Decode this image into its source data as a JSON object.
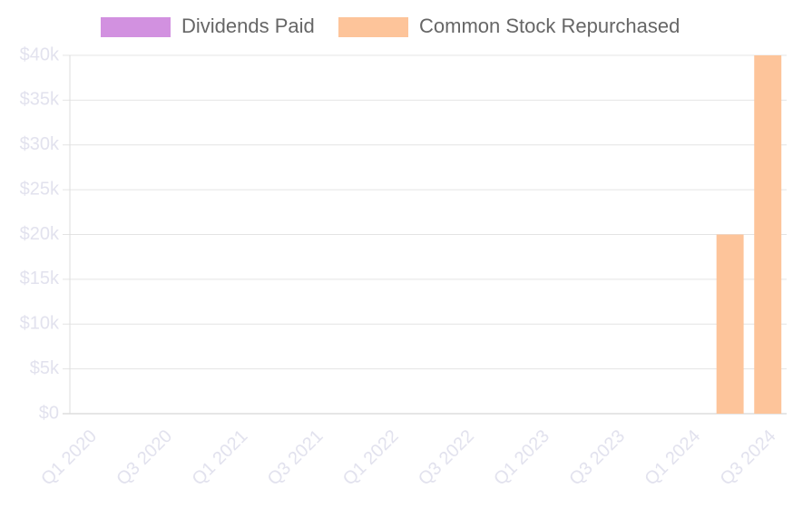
{
  "chart_data": {
    "type": "bar",
    "stacked": true,
    "categories": [
      "Q1 2020",
      null,
      "Q3 2020",
      null,
      "Q1 2021",
      null,
      "Q3 2021",
      null,
      "Q1 2022",
      null,
      "Q3 2022",
      null,
      "Q1 2023",
      null,
      "Q3 2023",
      null,
      "Q1 2024",
      null,
      "Q3 2024"
    ],
    "series": [
      {
        "name": "Dividends Paid",
        "color": "#d291e0",
        "values": [
          0,
          0,
          0,
          0,
          0,
          0,
          0,
          0,
          0,
          0,
          0,
          0,
          0,
          0,
          0,
          0,
          0,
          0,
          0
        ]
      },
      {
        "name": "Common Stock Repurchased",
        "color": "#fdc49a",
        "values": [
          0,
          0,
          0,
          0,
          0,
          0,
          0,
          0,
          0,
          0,
          0,
          0,
          0,
          0,
          0,
          0,
          0,
          20000,
          40000
        ]
      }
    ],
    "ylim": [
      0,
      40000
    ],
    "yticks": [
      {
        "value": 0,
        "label": "$0"
      },
      {
        "value": 5000,
        "label": "$5k"
      },
      {
        "value": 10000,
        "label": "$10k"
      },
      {
        "value": 15000,
        "label": "$15k"
      },
      {
        "value": 20000,
        "label": "$20k"
      },
      {
        "value": 25000,
        "label": "$25k"
      },
      {
        "value": 30000,
        "label": "$30k"
      },
      {
        "value": 35000,
        "label": "$35k"
      },
      {
        "value": 40000,
        "label": "$40k"
      }
    ],
    "grid": true,
    "legend": "top"
  }
}
